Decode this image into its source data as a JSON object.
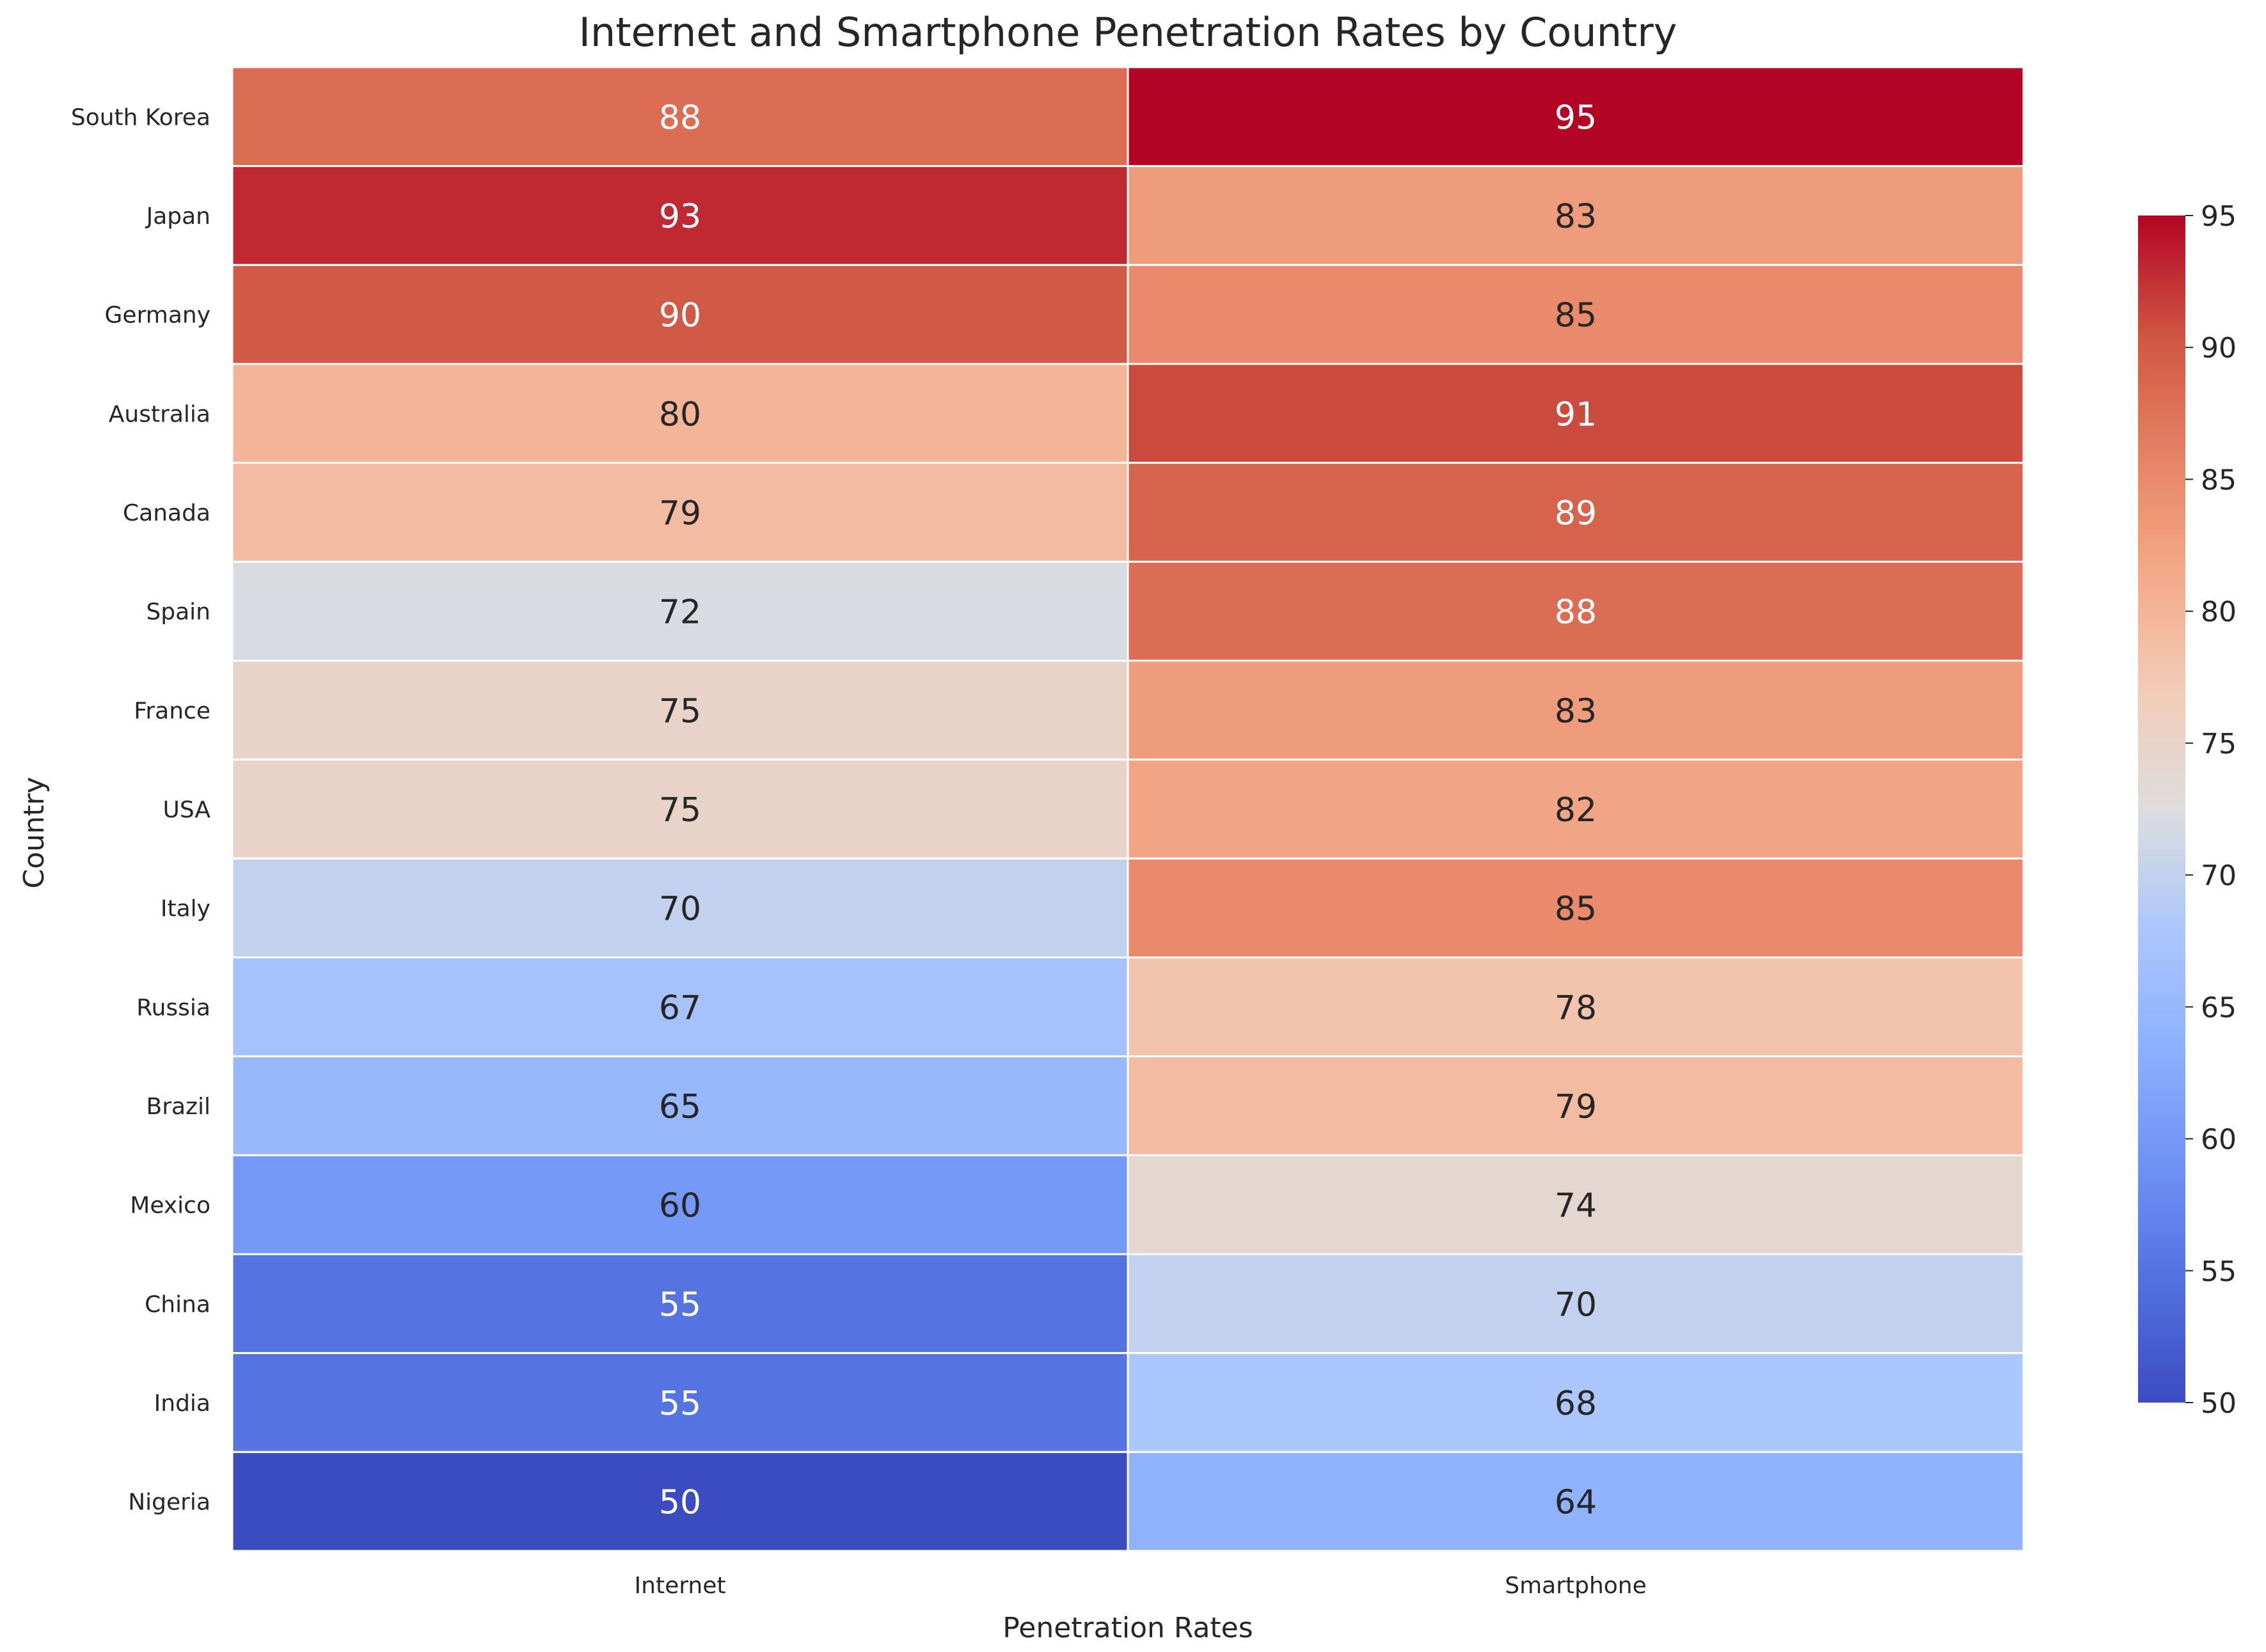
{
  "chart_data": {
    "type": "heatmap",
    "title": "Internet and Smartphone Penetration Rates by Country",
    "xlabel": "Penetration Rates",
    "ylabel": "Country",
    "columns": [
      "Internet",
      "Smartphone"
    ],
    "rows": [
      "South Korea",
      "Japan",
      "Germany",
      "Australia",
      "Canada",
      "Spain",
      "France",
      "USA",
      "Italy",
      "Russia",
      "Brazil",
      "Mexico",
      "China",
      "India",
      "Nigeria"
    ],
    "values": [
      [
        88,
        95
      ],
      [
        93,
        83
      ],
      [
        90,
        85
      ],
      [
        80,
        91
      ],
      [
        79,
        89
      ],
      [
        72,
        88
      ],
      [
        75,
        83
      ],
      [
        75,
        82
      ],
      [
        70,
        85
      ],
      [
        67,
        78
      ],
      [
        65,
        79
      ],
      [
        60,
        74
      ],
      [
        55,
        70
      ],
      [
        55,
        68
      ],
      [
        50,
        64
      ]
    ],
    "colormap": "coolwarm",
    "vmin": 50,
    "vmax": 95,
    "colorbar_ticks": [
      50,
      55,
      60,
      65,
      70,
      75,
      80,
      85,
      90,
      95
    ],
    "annotated": true,
    "grid": false
  }
}
